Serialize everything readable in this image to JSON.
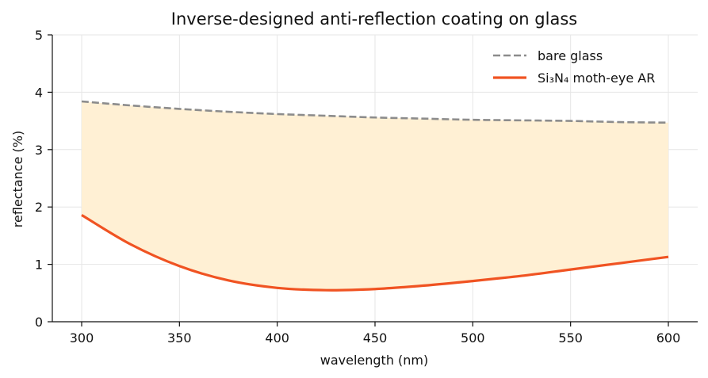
{
  "chart_data": {
    "type": "line",
    "title": "Inverse-designed anti-reflection coating on glass",
    "xlabel": "wavelength (nm)",
    "ylabel": "reflectance (%)",
    "xlim": [
      285,
      615
    ],
    "ylim": [
      0,
      5
    ],
    "xticks": [
      300,
      350,
      400,
      450,
      500,
      550,
      600
    ],
    "yticks": [
      0,
      1,
      2,
      3,
      4,
      5
    ],
    "grid": true,
    "legend_position": "top-right",
    "fill_between": {
      "from_series": "bare glass",
      "to_series": "Si₃N₄ moth-eye AR",
      "color": "#fff0d4"
    },
    "x": [
      300,
      325,
      350,
      375,
      400,
      425,
      450,
      475,
      500,
      525,
      550,
      575,
      600
    ],
    "series": [
      {
        "name": "bare glass",
        "color": "#8c8c8c",
        "style": "dashed",
        "values": [
          3.84,
          3.77,
          3.71,
          3.66,
          3.62,
          3.59,
          3.56,
          3.54,
          3.52,
          3.51,
          3.5,
          3.48,
          3.47
        ]
      },
      {
        "name": "Si₃N₄ moth-eye AR",
        "color": "#f05322",
        "style": "solid",
        "values": [
          1.86,
          1.35,
          0.97,
          0.72,
          0.59,
          0.55,
          0.57,
          0.63,
          0.71,
          0.8,
          0.91,
          1.02,
          1.13
        ]
      }
    ]
  }
}
